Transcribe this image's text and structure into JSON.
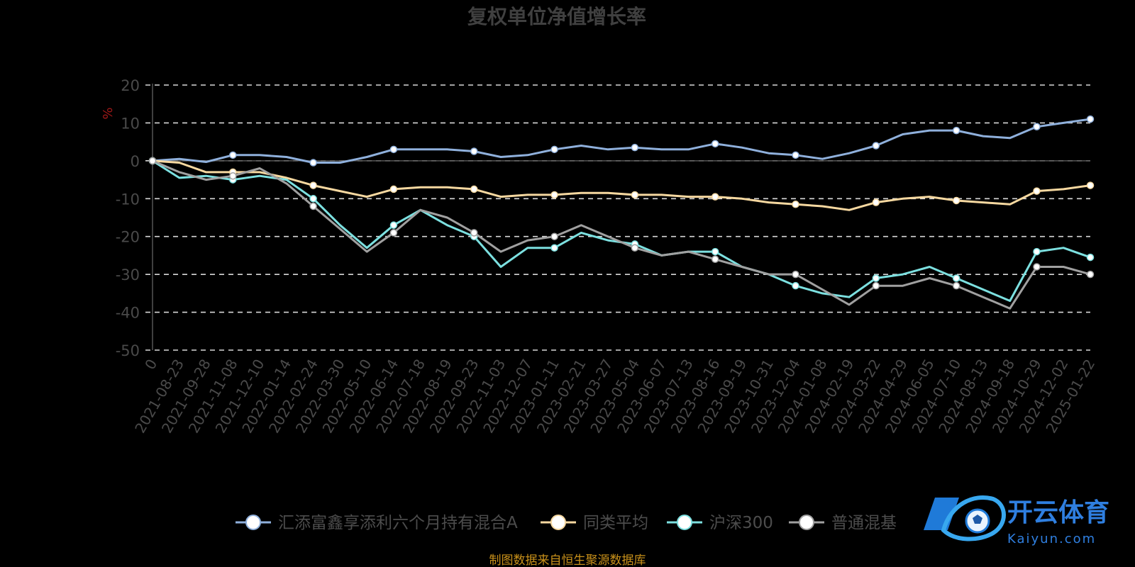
{
  "chart_data": {
    "type": "line",
    "title": "复权单位净值增长率",
    "ylabel": "%",
    "ylim": [
      -50,
      20
    ],
    "yticks": [
      "20",
      "10",
      "0",
      "-10",
      "-20",
      "-30",
      "-40",
      "-50"
    ],
    "xlabels": [
      "0",
      "2021-08-23",
      "2021-09-28",
      "2021-11-08",
      "2021-12-10",
      "2022-01-14",
      "2022-02-24",
      "2022-03-30",
      "2022-05-10",
      "2022-06-14",
      "2022-07-18",
      "2022-08-19",
      "2022-09-23",
      "2022-11-03",
      "2022-12-07",
      "2023-01-11",
      "2023-02-21",
      "2023-03-27",
      "2023-05-04",
      "2023-06-07",
      "2023-07-13",
      "2023-08-16",
      "2023-09-19",
      "2023-10-31",
      "2023-12-04",
      "2024-01-08",
      "2024-02-19",
      "2024-03-22",
      "2024-04-29",
      "2024-06-05",
      "2024-07-10",
      "2024-08-13",
      "2024-09-18",
      "2024-10-29",
      "2024-12-02",
      "2025-01-22"
    ],
    "grid": true,
    "legend": "bottom",
    "series": [
      {
        "name": "汇添富鑫享添利六个月持有混合A",
        "color": "#8fb0dc",
        "values": [
          0,
          0.5,
          -0.3,
          1.5,
          1.5,
          1,
          -0.5,
          -0.5,
          1,
          3,
          3,
          3,
          2.5,
          1,
          1.5,
          3,
          4,
          3,
          3.5,
          3,
          3,
          4.5,
          3.5,
          2,
          1.5,
          0.5,
          2,
          4,
          7,
          8,
          8,
          6.5,
          6,
          9,
          10,
          11
        ]
      },
      {
        "name": "同类平均",
        "color": "#f6d8a0",
        "values": [
          0,
          -0.5,
          -3,
          -3,
          -3,
          -4.5,
          -6.5,
          -8,
          -9.5,
          -7.5,
          -7,
          -7,
          -7.5,
          -9.5,
          -9,
          -9,
          -8.5,
          -8.5,
          -9,
          -9,
          -9.5,
          -9.5,
          -10,
          -11,
          -11.5,
          -12,
          -13,
          -11,
          -10,
          -9.5,
          -10.5,
          -11,
          -11.5,
          -8,
          -7.5,
          -6.5
        ]
      },
      {
        "name": "沪深300",
        "color": "#7ce0e0",
        "values": [
          0,
          -4.5,
          -4,
          -5,
          -4,
          -5,
          -10,
          -17,
          -23,
          -17,
          -13,
          -17,
          -20,
          -28,
          -23,
          -23,
          -19,
          -21,
          -22,
          -25,
          -24,
          -24,
          -28,
          -30,
          -33,
          -35,
          -36,
          -31,
          -30,
          -28,
          -31,
          -34,
          -37,
          -24,
          -23,
          -25.5
        ]
      },
      {
        "name": "普通混基",
        "color": "#a0a0a0",
        "values": [
          0,
          -3,
          -5,
          -4,
          -2,
          -6,
          -12,
          -18,
          -24,
          -19,
          -13,
          -15,
          -19,
          -24,
          -21,
          -20,
          -17,
          -20,
          -23,
          -25,
          -24,
          -26,
          -28,
          -30,
          -30,
          -34,
          -38,
          -33,
          -33,
          -31,
          -33,
          -36,
          -39,
          -28,
          -28,
          -30
        ]
      }
    ]
  },
  "source_note": "制图数据来自恒生聚源数据库",
  "watermark": {
    "text_cn": "开云体育",
    "text_en": "Kaiyun.com"
  }
}
